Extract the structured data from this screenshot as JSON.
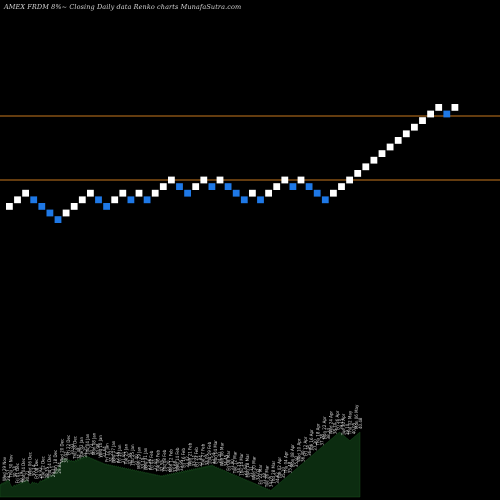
{
  "header": {
    "title": "AMEX  FRDM 8%~  Closing Daily data  Renko  charts MunafaSutra.com"
  },
  "chart_data": {
    "type": "renko",
    "brick_colors": {
      "up": "#ffffff",
      "down": "#1e78e6"
    },
    "reference_line_color": "#c8781e",
    "volume_fill": "#0c2c10",
    "y_scale": {
      "min": 0,
      "max": 52
    },
    "reference_levels": [
      49,
      39.5
    ],
    "bricks": [
      {
        "dir": "up",
        "value": 33
      },
      {
        "dir": "up",
        "value": 34
      },
      {
        "dir": "up",
        "value": 35
      },
      {
        "dir": "down",
        "value": 34
      },
      {
        "dir": "down",
        "value": 33
      },
      {
        "dir": "down",
        "value": 32
      },
      {
        "dir": "down",
        "value": 31
      },
      {
        "dir": "up",
        "value": 32
      },
      {
        "dir": "up",
        "value": 33
      },
      {
        "dir": "up",
        "value": 34
      },
      {
        "dir": "up",
        "value": 35
      },
      {
        "dir": "down",
        "value": 34
      },
      {
        "dir": "down",
        "value": 33
      },
      {
        "dir": "up",
        "value": 34
      },
      {
        "dir": "up",
        "value": 35
      },
      {
        "dir": "down",
        "value": 34
      },
      {
        "dir": "up",
        "value": 35
      },
      {
        "dir": "down",
        "value": 34
      },
      {
        "dir": "up",
        "value": 35
      },
      {
        "dir": "up",
        "value": 36
      },
      {
        "dir": "up",
        "value": 37
      },
      {
        "dir": "down",
        "value": 36
      },
      {
        "dir": "down",
        "value": 35
      },
      {
        "dir": "up",
        "value": 36
      },
      {
        "dir": "up",
        "value": 37
      },
      {
        "dir": "down",
        "value": 36
      },
      {
        "dir": "up",
        "value": 37
      },
      {
        "dir": "down",
        "value": 36
      },
      {
        "dir": "down",
        "value": 35
      },
      {
        "dir": "down",
        "value": 34
      },
      {
        "dir": "up",
        "value": 35
      },
      {
        "dir": "down",
        "value": 34
      },
      {
        "dir": "up",
        "value": 35
      },
      {
        "dir": "up",
        "value": 36
      },
      {
        "dir": "up",
        "value": 37
      },
      {
        "dir": "down",
        "value": 36
      },
      {
        "dir": "up",
        "value": 37
      },
      {
        "dir": "down",
        "value": 36
      },
      {
        "dir": "down",
        "value": 35
      },
      {
        "dir": "down",
        "value": 34
      },
      {
        "dir": "up",
        "value": 35
      },
      {
        "dir": "up",
        "value": 36
      },
      {
        "dir": "up",
        "value": 37
      },
      {
        "dir": "up",
        "value": 38
      },
      {
        "dir": "up",
        "value": 39
      },
      {
        "dir": "up",
        "value": 40
      },
      {
        "dir": "up",
        "value": 41
      },
      {
        "dir": "up",
        "value": 42
      },
      {
        "dir": "up",
        "value": 43
      },
      {
        "dir": "up",
        "value": 44
      },
      {
        "dir": "up",
        "value": 45
      },
      {
        "dir": "up",
        "value": 46
      },
      {
        "dir": "up",
        "value": 47
      },
      {
        "dir": "up",
        "value": 48
      },
      {
        "dir": "down",
        "value": 47
      },
      {
        "dir": "up",
        "value": 48
      }
    ],
    "date_labels": [
      "Wed 29 Nov",
      "Thu 30 Nov",
      "Fri 01 Dec",
      "Mon 04 Dec",
      "Wed 06 Dec",
      "Fri 08 Dec",
      "Tue 12 Dec",
      "Thu 14 Dec",
      "Mon 18 Dec",
      "Wed 20 Dec",
      "Fri 22 Dec",
      "Thu 28 Dec",
      "Tue 02 Jan",
      "Thu 04 Jan",
      "Mon 08 Jan",
      "Wed 10 Jan",
      "Fri 12 Jan",
      "Wed 17 Jan",
      "Fri 19 Jan",
      "Tue 23 Jan",
      "Thu 25 Jan",
      "Mon 29 Jan",
      "Wed 31 Jan",
      "Fri 02 Feb",
      "Tue 06 Feb",
      "Thu 08 Feb",
      "Mon 12 Feb",
      "Wed 14 Feb",
      "Fri 16 Feb",
      "Wed 21 Feb",
      "Fri 23 Feb",
      "Tue 27 Feb",
      "Thu 29 Feb",
      "Mon 04 Mar",
      "Wed 06 Mar",
      "Fri 08 Mar",
      "Tue 12 Mar",
      "Thu 14 Mar",
      "Mon 18 Mar",
      "Wed 20 Mar",
      "Fri 22 Mar",
      "Tue 26 Mar",
      "Thu 28 Mar",
      "Tue 02 Apr",
      "Thu 04 Apr",
      "Mon 08 Apr",
      "Wed 10 Apr",
      "Fri 12 Apr",
      "Tue 16 Apr",
      "Thu 18 Apr",
      "Mon 22 Apr",
      "Wed 24 Apr",
      "Fri 26 Apr",
      "Tue 30 Apr",
      "Thu 02 May",
      "Mon 06 May"
    ],
    "price_labels": [
      "29.57",
      "30.14",
      "30.79",
      "30.71",
      "30.14",
      "29.93",
      "29.35",
      "29.11",
      "29.84",
      "30.02",
      "30.93",
      "31.48",
      "31.25",
      "30.72",
      "30.98",
      "31.64",
      "31.22",
      "32.16",
      "31.81",
      "32.26",
      "32.40",
      "33.15",
      "33.36",
      "32.81",
      "32.55",
      "33.20",
      "33.68",
      "33.95",
      "33.42",
      "33.11",
      "32.84",
      "33.05",
      "33.54",
      "34.20",
      "34.45",
      "33.90",
      "34.15",
      "33.62",
      "33.31",
      "33.02",
      "33.48",
      "34.05",
      "34.62",
      "35.10",
      "35.48",
      "35.92",
      "36.40",
      "36.85",
      "37.30",
      "37.78",
      "38.24",
      "38.70",
      "39.15",
      "39.10",
      "40.05",
      "40.48"
    ],
    "volume": [
      30,
      27,
      33,
      29,
      35,
      31,
      38,
      34,
      40,
      36,
      30,
      26,
      22,
      25,
      28,
      24,
      29,
      27,
      31,
      28,
      34,
      30,
      36,
      32,
      38,
      35,
      41,
      37,
      33,
      30,
      28,
      32,
      35,
      31,
      34,
      30,
      33,
      29,
      32,
      36,
      38,
      35,
      40,
      37,
      43,
      39,
      46,
      42,
      48,
      45,
      51,
      47,
      53,
      55,
      58,
      61,
      64,
      67,
      72,
      76,
      80,
      84,
      88,
      85,
      90,
      86,
      88,
      84,
      86,
      82,
      85,
      81,
      84,
      80,
      86,
      82,
      88,
      84,
      90,
      86,
      92,
      88,
      94,
      90,
      96,
      92,
      94,
      90,
      92,
      88,
      90,
      86,
      88,
      84,
      86,
      82,
      84,
      80,
      82,
      78,
      80,
      76,
      78,
      74,
      77,
      73,
      76,
      72,
      75,
      71,
      74,
      70,
      73,
      69,
      72,
      68,
      71,
      67,
      70,
      66,
      69,
      65,
      68,
      64,
      67,
      63,
      66,
      62,
      65,
      61,
      64,
      60,
      63,
      59,
      62,
      58,
      61,
      57,
      60,
      56,
      59,
      55,
      58,
      54,
      57,
      53,
      56,
      52,
      55,
      51,
      54,
      50,
      53,
      49,
      52,
      48,
      51,
      47,
      50,
      46,
      51,
      47,
      52,
      48,
      53,
      49,
      54,
      50,
      55,
      51,
      56,
      52,
      57,
      53,
      58,
      54,
      59,
      55,
      60,
      56,
      61,
      57,
      62,
      58,
      63,
      59,
      64,
      60,
      65,
      61,
      66,
      62,
      67,
      63,
      68,
      64,
      69,
      65,
      70,
      66,
      71,
      67,
      72,
      68,
      73,
      69,
      74,
      70,
      75,
      71,
      72,
      68,
      70,
      66,
      68,
      64,
      66,
      62,
      64,
      60,
      62,
      58,
      60,
      56,
      58,
      54,
      56,
      52,
      54,
      50,
      52,
      48,
      50,
      46,
      48,
      44,
      46,
      42,
      44,
      40,
      42,
      38,
      40,
      36,
      38,
      34,
      36,
      32,
      34,
      30,
      32,
      28,
      30,
      26,
      28,
      24,
      26,
      22,
      24,
      20,
      22,
      18,
      20,
      16,
      18,
      14,
      16,
      18,
      20,
      22,
      24,
      26,
      28,
      30,
      32,
      34,
      36,
      38,
      40,
      42,
      44,
      46,
      48,
      50,
      52,
      54,
      56,
      58,
      60,
      62,
      64,
      66,
      68,
      70,
      72,
      74,
      76,
      78,
      80,
      82,
      84,
      86,
      88,
      90,
      92,
      94,
      96,
      98,
      100,
      102,
      104,
      106,
      108,
      110,
      112,
      114,
      116,
      118,
      120,
      122,
      124,
      126,
      128,
      130,
      132,
      134,
      136,
      138,
      140,
      142,
      144,
      146,
      148,
      150,
      148,
      146,
      144,
      142,
      140,
      138,
      136,
      134,
      132,
      130,
      132,
      134,
      136,
      138,
      140,
      142,
      144,
      146,
      148,
      150
    ]
  }
}
